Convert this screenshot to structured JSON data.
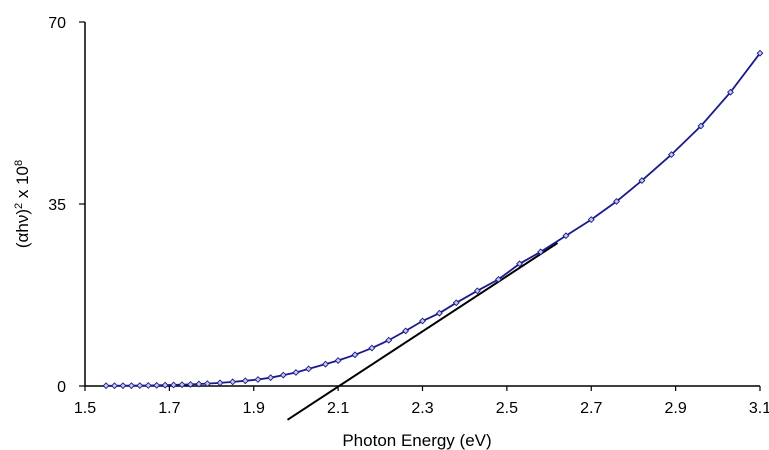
{
  "chart_data": {
    "type": "line",
    "title": "",
    "xlabel": "Photon Energy (eV)",
    "ylabel": {
      "main": "(αhν)",
      "sup1": "2",
      "mid": " x 10",
      "sup2": "8"
    },
    "xlim": [
      1.5,
      3.1
    ],
    "ylim": [
      0,
      70
    ],
    "xticks": [
      {
        "value": 1.5,
        "label": "1.5"
      },
      {
        "value": 1.7,
        "label": "1.7"
      },
      {
        "value": 1.9,
        "label": "1.9"
      },
      {
        "value": 2.1,
        "label": "2.1"
      },
      {
        "value": 2.3,
        "label": "2.3"
      },
      {
        "value": 2.5,
        "label": "2.5"
      },
      {
        "value": 2.7,
        "label": "2.7"
      },
      {
        "value": 2.9,
        "label": "2.9"
      },
      {
        "value": 3.1,
        "label": "3.1"
      }
    ],
    "yticks": [
      {
        "value": 0,
        "label": "0"
      },
      {
        "value": 35,
        "label": "35"
      },
      {
        "value": 70,
        "label": "70"
      }
    ],
    "grid": false,
    "legend": "none",
    "series": [
      {
        "color": "#1a1a8c",
        "marker": "diamond",
        "x": [
          1.55,
          1.57,
          1.59,
          1.61,
          1.63,
          1.65,
          1.67,
          1.69,
          1.71,
          1.73,
          1.75,
          1.77,
          1.79,
          1.82,
          1.85,
          1.88,
          1.91,
          1.94,
          1.97,
          2.0,
          2.03,
          2.07,
          2.1,
          2.14,
          2.18,
          2.22,
          2.26,
          2.3,
          2.34,
          2.38,
          2.43,
          2.48,
          2.53,
          2.58,
          2.64,
          2.7,
          2.76,
          2.82,
          2.89,
          2.96,
          3.03,
          3.1
        ],
        "y": [
          0.05,
          0.05,
          0.06,
          0.07,
          0.08,
          0.1,
          0.13,
          0.16,
          0.2,
          0.25,
          0.3,
          0.38,
          0.45,
          0.6,
          0.8,
          1.0,
          1.25,
          1.6,
          2.1,
          2.6,
          3.3,
          4.2,
          4.9,
          6.0,
          7.3,
          8.8,
          10.6,
          12.5,
          14.0,
          16.0,
          18.3,
          20.5,
          23.5,
          25.8,
          28.9,
          32.0,
          35.5,
          39.5,
          44.5,
          50.0,
          56.5,
          64.0
        ]
      },
      {
        "color": "#000000",
        "marker": "none",
        "x": [
          1.98,
          2.62
        ],
        "y": [
          -6.5,
          27.5
        ]
      }
    ]
  }
}
